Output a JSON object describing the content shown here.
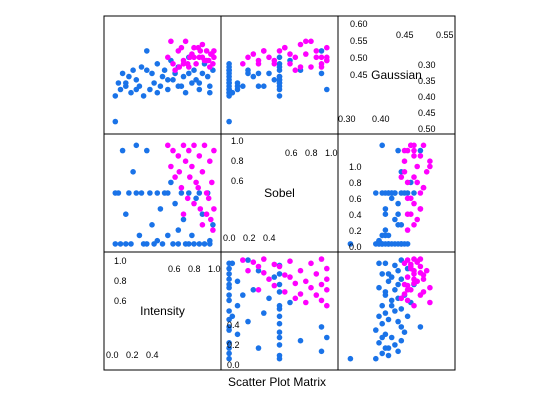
{
  "chart_data": {
    "type": "scatter",
    "title": "",
    "xlabel": "Scatter Plot Matrix",
    "variables": [
      "Intensity",
      "Sobel",
      "Gaussian"
    ],
    "ranges": {
      "Intensity": [
        0.0,
        1.0
      ],
      "Sobel": [
        0.0,
        1.0
      ],
      "Gaussian": [
        0.28,
        0.61
      ]
    },
    "panel_ticks": {
      "gaussian_upper": [
        "0.45",
        "0.50",
        "0.55",
        "0.60"
      ],
      "gaussian_top": [
        "0.45",
        "0.55"
      ],
      "gaussian_right": [
        "0.30",
        "0.35",
        "0.40",
        "0.45",
        "0.50"
      ],
      "gaussian_bottom": [
        "0.30",
        "0.40"
      ],
      "sobel_upper": [
        "0.6",
        "0.8",
        "1.0"
      ],
      "sobel_top": [
        "0.6",
        "0.8",
        "1.0"
      ],
      "sobel_lower": [
        "0.6",
        "0.8",
        "1.0"
      ],
      "sobel_bottom": [
        "0.0",
        "0.2",
        "0.4"
      ],
      "intensity_upper": [
        "0.6",
        "0.8",
        "1.0"
      ],
      "intensity_top": [
        "0.6",
        "0.8",
        "1.0"
      ],
      "intensity_lower": [
        "0.6",
        "0.8",
        "1.0"
      ],
      "intensity_bottom": [
        "0.0",
        "0.2",
        "0.4"
      ],
      "side_left_1": [
        "0.0",
        "0.2",
        "0.4"
      ],
      "side_left_2": [
        "0.0",
        "0.2",
        "0.4"
      ]
    },
    "side_ticks": {
      "panel_1_1_left": [
        "0.0",
        "0.2",
        "0.4",
        "0.6",
        "0.8",
        "1.0"
      ],
      "panel_1_2_right": [
        "0.0",
        "0.2",
        "0.4"
      ],
      "panel_2_0_left": [
        "0.0",
        "0.2",
        "0.4"
      ]
    },
    "grid": false,
    "legend": "none",
    "colors": {
      "group_a": "#1a73e8",
      "group_b": "#ff00ff"
    },
    "series": [
      {
        "group": "group_a",
        "points": [
          [
            0.05,
            0.02,
            0.3
          ],
          [
            0.08,
            0.5,
            0.42
          ],
          [
            0.1,
            0.02,
            0.4
          ],
          [
            0.12,
            0.9,
            0.45
          ],
          [
            0.15,
            0.3,
            0.41
          ],
          [
            0.18,
            0.5,
            0.44
          ],
          [
            0.2,
            0.02,
            0.39
          ],
          [
            0.22,
            0.7,
            0.46
          ],
          [
            0.25,
            0.5,
            0.43
          ],
          [
            0.28,
            0.1,
            0.41
          ],
          [
            0.3,
            0.5,
            0.47
          ],
          [
            0.32,
            0.02,
            0.38
          ],
          [
            0.35,
            0.9,
            0.52
          ],
          [
            0.38,
            0.5,
            0.4
          ],
          [
            0.4,
            0.2,
            0.45
          ],
          [
            0.42,
            0.02,
            0.42
          ],
          [
            0.45,
            0.5,
            0.48
          ],
          [
            0.48,
            0.35,
            0.41
          ],
          [
            0.5,
            0.02,
            0.44
          ],
          [
            0.52,
            0.5,
            0.46
          ],
          [
            0.55,
            0.1,
            0.4
          ],
          [
            0.58,
            0.6,
            0.49
          ],
          [
            0.6,
            0.02,
            0.43
          ],
          [
            0.62,
            0.4,
            0.45
          ],
          [
            0.65,
            0.02,
            0.47
          ],
          [
            0.68,
            0.5,
            0.41
          ],
          [
            0.7,
            0.25,
            0.44
          ],
          [
            0.72,
            0.02,
            0.39
          ],
          [
            0.75,
            0.5,
            0.5
          ],
          [
            0.78,
            0.1,
            0.42
          ],
          [
            0.8,
            0.02,
            0.46
          ],
          [
            0.82,
            0.45,
            0.43
          ],
          [
            0.85,
            0.02,
            0.4
          ],
          [
            0.88,
            0.3,
            0.45
          ],
          [
            0.9,
            0.02,
            0.48
          ],
          [
            0.93,
            0.5,
            0.44
          ],
          [
            0.95,
            0.02,
            0.41
          ],
          [
            0.98,
            0.2,
            0.46
          ],
          [
            0.05,
            0.5,
            0.38
          ],
          [
            0.15,
            0.02,
            0.42
          ],
          [
            0.25,
            0.95,
            0.4
          ],
          [
            0.35,
            0.02,
            0.46
          ],
          [
            0.45,
            0.05,
            0.39
          ],
          [
            0.55,
            0.5,
            0.43
          ],
          [
            0.65,
            0.15,
            0.41
          ],
          [
            0.75,
            0.02,
            0.45
          ],
          [
            0.85,
            0.5,
            0.42
          ],
          [
            0.95,
            0.05,
            0.39
          ]
        ]
      },
      {
        "group": "group_b",
        "points": [
          [
            0.55,
            0.95,
            0.5
          ],
          [
            0.6,
            0.9,
            0.48
          ],
          [
            0.65,
            0.85,
            0.52
          ],
          [
            0.7,
            0.95,
            0.49
          ],
          [
            0.72,
            0.8,
            0.55
          ],
          [
            0.75,
            0.9,
            0.47
          ],
          [
            0.78,
            0.75,
            0.51
          ],
          [
            0.8,
            0.95,
            0.53
          ],
          [
            0.82,
            0.6,
            0.48
          ],
          [
            0.85,
            0.85,
            0.5
          ],
          [
            0.88,
            0.7,
            0.54
          ],
          [
            0.9,
            0.95,
            0.49
          ],
          [
            0.92,
            0.5,
            0.52
          ],
          [
            0.95,
            0.8,
            0.47
          ],
          [
            0.97,
            0.6,
            0.51
          ],
          [
            0.99,
            0.9,
            0.5
          ],
          [
            0.62,
            0.65,
            0.46
          ],
          [
            0.68,
            0.55,
            0.53
          ],
          [
            0.74,
            0.45,
            0.48
          ],
          [
            0.8,
            0.4,
            0.5
          ],
          [
            0.86,
            0.35,
            0.52
          ],
          [
            0.92,
            0.3,
            0.49
          ],
          [
            0.96,
            0.25,
            0.51
          ],
          [
            0.98,
            0.15,
            0.48
          ],
          [
            0.58,
            0.75,
            0.55
          ],
          [
            0.66,
            0.7,
            0.47
          ],
          [
            0.76,
            0.65,
            0.5
          ],
          [
            0.84,
            0.55,
            0.53
          ],
          [
            0.94,
            0.45,
            0.49
          ],
          [
            0.99,
            0.35,
            0.52
          ],
          [
            0.7,
            0.3,
            0.48
          ],
          [
            0.88,
            0.2,
            0.5
          ]
        ]
      }
    ]
  }
}
